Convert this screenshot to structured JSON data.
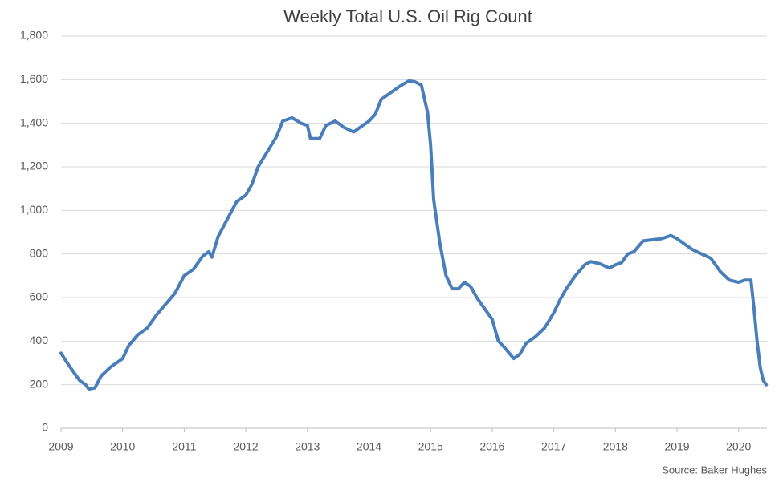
{
  "chart_data": {
    "type": "line",
    "title": "Weekly Total U.S. Oil Rig Count",
    "source": "Source: Baker Hughes",
    "x": [
      2009.0,
      2009.1,
      2009.2,
      2009.3,
      2009.4,
      2009.45,
      2009.55,
      2009.65,
      2009.8,
      2010.0,
      2010.1,
      2010.25,
      2010.4,
      2010.55,
      2010.7,
      2010.85,
      2011.0,
      2011.15,
      2011.3,
      2011.4,
      2011.45,
      2011.55,
      2011.7,
      2011.85,
      2012.0,
      2012.1,
      2012.2,
      2012.35,
      2012.5,
      2012.6,
      2012.75,
      2012.9,
      2013.0,
      2013.05,
      2013.2,
      2013.3,
      2013.45,
      2013.6,
      2013.75,
      2013.9,
      2014.0,
      2014.1,
      2014.2,
      2014.35,
      2014.5,
      2014.65,
      2014.75,
      2014.85,
      2014.95,
      2015.0,
      2015.05,
      2015.15,
      2015.25,
      2015.35,
      2015.45,
      2015.55,
      2015.65,
      2015.75,
      2015.9,
      2016.0,
      2016.1,
      2016.2,
      2016.35,
      2016.45,
      2016.55,
      2016.7,
      2016.85,
      2017.0,
      2017.1,
      2017.2,
      2017.35,
      2017.5,
      2017.6,
      2017.75,
      2017.9,
      2018.0,
      2018.1,
      2018.2,
      2018.3,
      2018.45,
      2018.6,
      2018.75,
      2018.9,
      2019.0,
      2019.1,
      2019.25,
      2019.4,
      2019.55,
      2019.7,
      2019.85,
      2020.0,
      2020.1,
      2020.2,
      2020.25,
      2020.3,
      2020.35,
      2020.4,
      2020.45
    ],
    "series": [
      {
        "name": "Oil Rig Count",
        "color": "#4a7ebb",
        "values": [
          345,
          300,
          260,
          220,
          200,
          180,
          185,
          240,
          280,
          320,
          380,
          430,
          460,
          520,
          570,
          620,
          700,
          730,
          790,
          810,
          785,
          880,
          960,
          1040,
          1070,
          1120,
          1200,
          1270,
          1340,
          1410,
          1425,
          1400,
          1390,
          1330,
          1330,
          1390,
          1410,
          1380,
          1360,
          1390,
          1410,
          1440,
          1510,
          1540,
          1570,
          1595,
          1590,
          1575,
          1450,
          1300,
          1050,
          850,
          700,
          640,
          640,
          670,
          650,
          600,
          540,
          500,
          400,
          370,
          320,
          340,
          390,
          420,
          460,
          530,
          590,
          640,
          700,
          750,
          765,
          755,
          735,
          750,
          760,
          800,
          810,
          860,
          865,
          870,
          885,
          870,
          850,
          820,
          800,
          780,
          720,
          680,
          670,
          680,
          680,
          550,
          400,
          280,
          220,
          200
        ]
      }
    ],
    "xlim": [
      2009,
      2020.46
    ],
    "xticks": [
      2009,
      2010,
      2011,
      2012,
      2013,
      2014,
      2015,
      2016,
      2017,
      2018,
      2019,
      2020
    ],
    "ylim": [
      0,
      1800
    ],
    "yticks": [
      0,
      200,
      400,
      600,
      800,
      {
        "value": 1000,
        "label": "1,000"
      },
      {
        "value": 1200,
        "label": "1,200"
      },
      {
        "value": 1400,
        "label": "1,400"
      },
      {
        "value": 1600,
        "label": "1,600"
      },
      {
        "value": 1800,
        "label": "1,800"
      }
    ],
    "grid": true
  }
}
